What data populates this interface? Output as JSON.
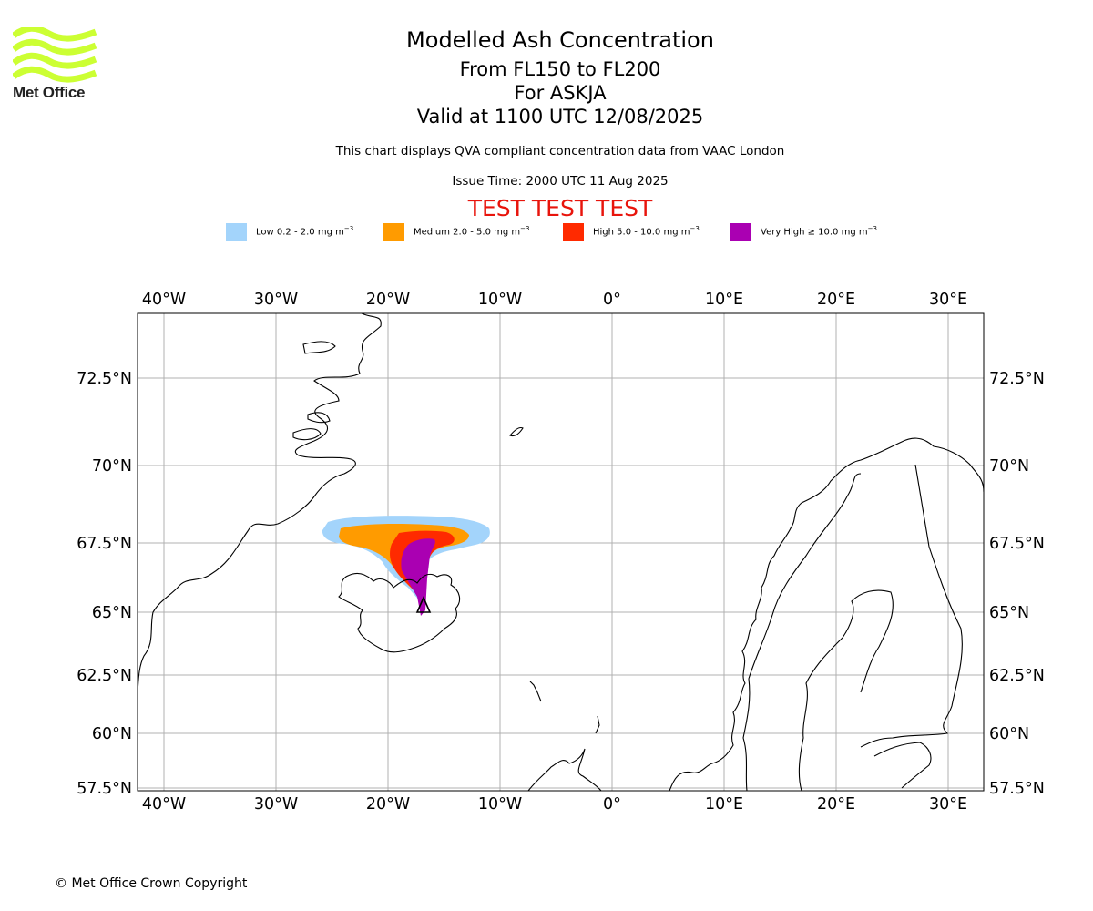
{
  "logo": {
    "text": "Met Office",
    "color": "#ccff33"
  },
  "header": {
    "title": "Modelled Ash Concentration",
    "flight_levels": "From FL150 to FL200",
    "volcano": "For ASKJA",
    "valid_time": "Valid at 1100 UTC 12/08/2025",
    "description": "This chart displays QVA compliant concentration data from VAAC London",
    "issue_time": "Issue Time: 2000 UTC 11 Aug 2025",
    "test_banner": "TEST TEST TEST"
  },
  "legend": [
    {
      "label": "Low 0.2 - 2.0 mg m",
      "exp": "−3",
      "color": "#a3d4fb"
    },
    {
      "label": "Medium 2.0 - 5.0 mg m",
      "exp": "−3",
      "color": "#ff9b00"
    },
    {
      "label": "High 5.0 - 10.0 mg m",
      "exp": "−3",
      "color": "#ff2a00"
    },
    {
      "label": "Very High  ≥  10.0 mg m",
      "exp": "−3",
      "color": "#aa00b2"
    }
  ],
  "map": {
    "lon_ticks": [
      "40°W",
      "30°W",
      "20°W",
      "10°W",
      "0°",
      "10°E",
      "20°E",
      "30°E"
    ],
    "lat_ticks": [
      "72.5°N",
      "70°N",
      "67.5°N",
      "65°N",
      "62.5°N",
      "60°N",
      "57.5°N"
    ],
    "volcano_marker": "triangle",
    "grid": true
  },
  "footer": {
    "copyright": "© Met Office Crown Copyright"
  }
}
